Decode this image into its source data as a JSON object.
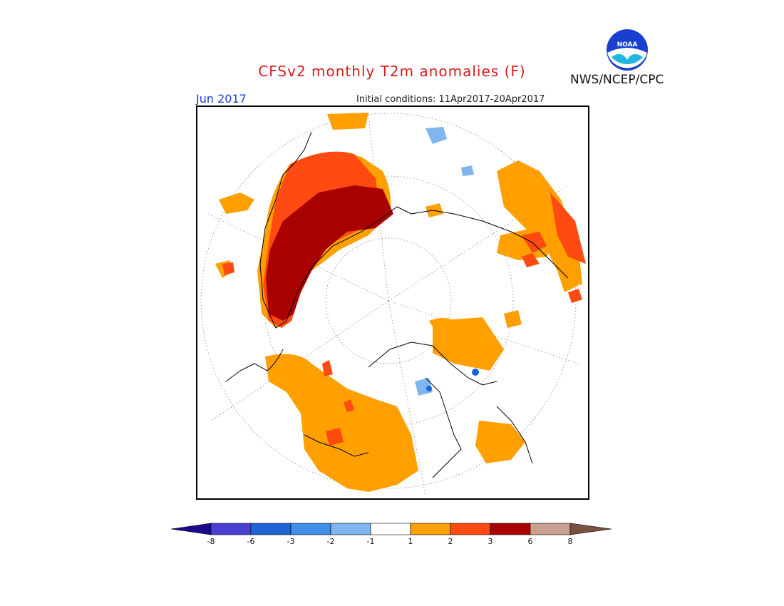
{
  "header": {
    "title": "CFSv2 monthly T2m anomalies (F)",
    "month": "Jun 2017",
    "initial_conditions": "Initial conditions: 11Apr2017-20Apr2017",
    "agency": "NWS/NCEP/CPC",
    "logo_text": "NOAA"
  },
  "legend": {
    "ticks": [
      "-8",
      "-6",
      "-3",
      "-2",
      "-1",
      "1",
      "2",
      "3",
      "6",
      "8"
    ],
    "bins": [
      {
        "range": "< -8",
        "color": "#1a0a8a"
      },
      {
        "range": "-8 to -6",
        "color": "#4a3fd0"
      },
      {
        "range": "-6 to -3",
        "color": "#1f64d4"
      },
      {
        "range": "-3 to -2",
        "color": "#3f8fe6"
      },
      {
        "range": "-2 to -1",
        "color": "#7fb6f0"
      },
      {
        "range": "-1 to 1",
        "color": "#ffffff"
      },
      {
        "range": "1 to 2",
        "color": "#ff9f00"
      },
      {
        "range": "2 to 3",
        "color": "#ff4a12"
      },
      {
        "range": "3 to 6",
        "color": "#a90000"
      },
      {
        "range": "6 to 8",
        "color": "#c9a090"
      },
      {
        "range": "> 8",
        "color": "#7a5040"
      }
    ]
  },
  "map": {
    "projection": "north polar stereographic",
    "colors": {
      "orange": "#ff9f00",
      "red": "#ff4a12",
      "darkred": "#a90000",
      "lightblue": "#7fb6f0",
      "blue": "#1f64d4"
    }
  }
}
